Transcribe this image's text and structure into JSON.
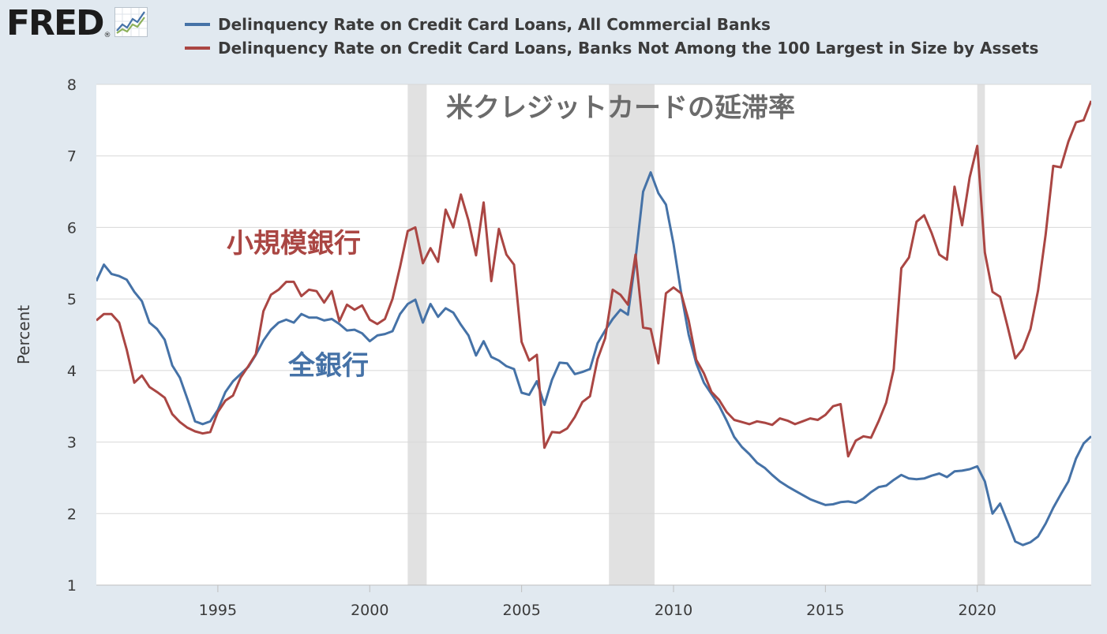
{
  "logo": {
    "text": "FRED",
    "registered": "®",
    "icon": "line-chart-icon"
  },
  "legend": [
    {
      "label": "Delinquency Rate on Credit Card Loans, All Commercial Banks",
      "color": "#4572a7"
    },
    {
      "label": "Delinquency Rate on Credit Card Loans, Banks Not Among the 100 Largest in Size by Assets",
      "color": "#aa4643"
    }
  ],
  "chart_data": {
    "type": "line",
    "title": "米クレジットカードの延滞率",
    "ylabel": "Percent",
    "xlabel": "",
    "xlim": [
      1991.0,
      2023.75
    ],
    "ylim": [
      1,
      8
    ],
    "xticks": [
      1995,
      2000,
      2005,
      2010,
      2015,
      2020
    ],
    "yticks": [
      1,
      2,
      3,
      4,
      5,
      6,
      7,
      8
    ],
    "grid": true,
    "recessions": [
      [
        2001.25,
        2001.875
      ],
      [
        2007.875,
        2009.375
      ],
      [
        2020.0,
        2020.25
      ]
    ],
    "annotations": [
      {
        "text": "小規模銀行",
        "color": "#aa4643",
        "series": 1
      },
      {
        "text": "全銀行",
        "color": "#4572a7",
        "series": 0
      }
    ],
    "series": [
      {
        "name": "Delinquency Rate on Credit Card Loans, All Commercial Banks",
        "color": "#4572a7",
        "points": [
          [
            1991.0,
            5.25
          ],
          [
            1991.25,
            5.48
          ],
          [
            1991.5,
            5.35
          ],
          [
            1991.75,
            5.32
          ],
          [
            1992.0,
            5.27
          ],
          [
            1992.25,
            5.1
          ],
          [
            1992.5,
            4.97
          ],
          [
            1992.75,
            4.67
          ],
          [
            1993.0,
            4.58
          ],
          [
            1993.25,
            4.43
          ],
          [
            1993.5,
            4.07
          ],
          [
            1993.75,
            3.9
          ],
          [
            1994.0,
            3.6
          ],
          [
            1994.25,
            3.29
          ],
          [
            1994.5,
            3.25
          ],
          [
            1994.75,
            3.29
          ],
          [
            1995.0,
            3.45
          ],
          [
            1995.25,
            3.7
          ],
          [
            1995.5,
            3.85
          ],
          [
            1995.75,
            3.95
          ],
          [
            1996.0,
            4.05
          ],
          [
            1996.25,
            4.22
          ],
          [
            1996.5,
            4.42
          ],
          [
            1996.75,
            4.57
          ],
          [
            1997.0,
            4.67
          ],
          [
            1997.25,
            4.71
          ],
          [
            1997.5,
            4.67
          ],
          [
            1997.75,
            4.79
          ],
          [
            1998.0,
            4.74
          ],
          [
            1998.25,
            4.74
          ],
          [
            1998.5,
            4.7
          ],
          [
            1998.75,
            4.72
          ],
          [
            1999.0,
            4.65
          ],
          [
            1999.25,
            4.56
          ],
          [
            1999.5,
            4.57
          ],
          [
            1999.75,
            4.52
          ],
          [
            2000.0,
            4.41
          ],
          [
            2000.25,
            4.49
          ],
          [
            2000.5,
            4.51
          ],
          [
            2000.75,
            4.55
          ],
          [
            2001.0,
            4.79
          ],
          [
            2001.25,
            4.93
          ],
          [
            2001.5,
            4.99
          ],
          [
            2001.75,
            4.67
          ],
          [
            2002.0,
            4.93
          ],
          [
            2002.25,
            4.75
          ],
          [
            2002.5,
            4.87
          ],
          [
            2002.75,
            4.81
          ],
          [
            2003.0,
            4.64
          ],
          [
            2003.25,
            4.49
          ],
          [
            2003.5,
            4.21
          ],
          [
            2003.75,
            4.41
          ],
          [
            2004.0,
            4.19
          ],
          [
            2004.25,
            4.14
          ],
          [
            2004.5,
            4.06
          ],
          [
            2004.75,
            4.02
          ],
          [
            2005.0,
            3.69
          ],
          [
            2005.25,
            3.66
          ],
          [
            2005.5,
            3.85
          ],
          [
            2005.75,
            3.52
          ],
          [
            2006.0,
            3.87
          ],
          [
            2006.25,
            4.11
          ],
          [
            2006.5,
            4.1
          ],
          [
            2006.75,
            3.95
          ],
          [
            2007.0,
            3.98
          ],
          [
            2007.25,
            4.02
          ],
          [
            2007.5,
            4.38
          ],
          [
            2007.75,
            4.56
          ],
          [
            2008.0,
            4.72
          ],
          [
            2008.25,
            4.85
          ],
          [
            2008.5,
            4.78
          ],
          [
            2008.75,
            5.56
          ],
          [
            2009.0,
            6.5
          ],
          [
            2009.25,
            6.77
          ],
          [
            2009.5,
            6.48
          ],
          [
            2009.75,
            6.32
          ],
          [
            2010.0,
            5.77
          ],
          [
            2010.25,
            5.09
          ],
          [
            2010.5,
            4.5
          ],
          [
            2010.75,
            4.1
          ],
          [
            2011.0,
            3.83
          ],
          [
            2011.25,
            3.67
          ],
          [
            2011.5,
            3.51
          ],
          [
            2011.75,
            3.3
          ],
          [
            2012.0,
            3.07
          ],
          [
            2012.25,
            2.93
          ],
          [
            2012.5,
            2.83
          ],
          [
            2012.75,
            2.71
          ],
          [
            2013.0,
            2.64
          ],
          [
            2013.25,
            2.54
          ],
          [
            2013.5,
            2.45
          ],
          [
            2013.75,
            2.38
          ],
          [
            2014.0,
            2.32
          ],
          [
            2014.25,
            2.26
          ],
          [
            2014.5,
            2.2
          ],
          [
            2014.75,
            2.16
          ],
          [
            2015.0,
            2.12
          ],
          [
            2015.25,
            2.13
          ],
          [
            2015.5,
            2.16
          ],
          [
            2015.75,
            2.17
          ],
          [
            2016.0,
            2.15
          ],
          [
            2016.25,
            2.21
          ],
          [
            2016.5,
            2.3
          ],
          [
            2016.75,
            2.37
          ],
          [
            2017.0,
            2.39
          ],
          [
            2017.25,
            2.47
          ],
          [
            2017.5,
            2.54
          ],
          [
            2017.75,
            2.49
          ],
          [
            2018.0,
            2.48
          ],
          [
            2018.25,
            2.49
          ],
          [
            2018.5,
            2.53
          ],
          [
            2018.75,
            2.56
          ],
          [
            2019.0,
            2.51
          ],
          [
            2019.25,
            2.59
          ],
          [
            2019.5,
            2.6
          ],
          [
            2019.75,
            2.62
          ],
          [
            2020.0,
            2.66
          ],
          [
            2020.25,
            2.45
          ],
          [
            2020.5,
            2.0
          ],
          [
            2020.75,
            2.14
          ],
          [
            2021.0,
            1.88
          ],
          [
            2021.25,
            1.61
          ],
          [
            2021.5,
            1.56
          ],
          [
            2021.75,
            1.6
          ],
          [
            2022.0,
            1.68
          ],
          [
            2022.25,
            1.86
          ],
          [
            2022.5,
            2.08
          ],
          [
            2022.75,
            2.27
          ],
          [
            2023.0,
            2.45
          ],
          [
            2023.25,
            2.77
          ],
          [
            2023.5,
            2.98
          ],
          [
            2023.75,
            3.08
          ]
        ]
      },
      {
        "name": "Delinquency Rate on Credit Card Loans, Banks Not Among the 100 Largest in Size by Assets",
        "color": "#aa4643",
        "points": [
          [
            1991.0,
            4.7
          ],
          [
            1991.25,
            4.79
          ],
          [
            1991.5,
            4.79
          ],
          [
            1991.75,
            4.67
          ],
          [
            1992.0,
            4.29
          ],
          [
            1992.25,
            3.83
          ],
          [
            1992.5,
            3.93
          ],
          [
            1992.75,
            3.77
          ],
          [
            1993.0,
            3.7
          ],
          [
            1993.25,
            3.62
          ],
          [
            1993.5,
            3.39
          ],
          [
            1993.75,
            3.28
          ],
          [
            1994.0,
            3.2
          ],
          [
            1994.25,
            3.15
          ],
          [
            1994.5,
            3.12
          ],
          [
            1994.75,
            3.14
          ],
          [
            1995.0,
            3.42
          ],
          [
            1995.25,
            3.58
          ],
          [
            1995.5,
            3.65
          ],
          [
            1995.75,
            3.9
          ],
          [
            1996.0,
            4.06
          ],
          [
            1996.25,
            4.23
          ],
          [
            1996.5,
            4.83
          ],
          [
            1996.75,
            5.06
          ],
          [
            1997.0,
            5.13
          ],
          [
            1997.25,
            5.24
          ],
          [
            1997.5,
            5.24
          ],
          [
            1997.75,
            5.04
          ],
          [
            1998.0,
            5.13
          ],
          [
            1998.25,
            5.11
          ],
          [
            1998.5,
            4.95
          ],
          [
            1998.75,
            5.11
          ],
          [
            1999.0,
            4.69
          ],
          [
            1999.25,
            4.92
          ],
          [
            1999.5,
            4.85
          ],
          [
            1999.75,
            4.91
          ],
          [
            2000.0,
            4.71
          ],
          [
            2000.25,
            4.65
          ],
          [
            2000.5,
            4.72
          ],
          [
            2000.75,
            5.0
          ],
          [
            2001.0,
            5.45
          ],
          [
            2001.25,
            5.95
          ],
          [
            2001.5,
            6.0
          ],
          [
            2001.75,
            5.5
          ],
          [
            2002.0,
            5.71
          ],
          [
            2002.25,
            5.52
          ],
          [
            2002.5,
            6.25
          ],
          [
            2002.75,
            6.0
          ],
          [
            2003.0,
            6.46
          ],
          [
            2003.25,
            6.1
          ],
          [
            2003.5,
            5.61
          ],
          [
            2003.75,
            6.35
          ],
          [
            2004.0,
            5.25
          ],
          [
            2004.25,
            5.98
          ],
          [
            2004.5,
            5.62
          ],
          [
            2004.75,
            5.48
          ],
          [
            2005.0,
            4.4
          ],
          [
            2005.25,
            4.14
          ],
          [
            2005.5,
            4.22
          ],
          [
            2005.75,
            2.92
          ],
          [
            2006.0,
            3.14
          ],
          [
            2006.25,
            3.13
          ],
          [
            2006.5,
            3.19
          ],
          [
            2006.75,
            3.35
          ],
          [
            2007.0,
            3.56
          ],
          [
            2007.25,
            3.64
          ],
          [
            2007.5,
            4.16
          ],
          [
            2007.75,
            4.45
          ],
          [
            2008.0,
            5.13
          ],
          [
            2008.25,
            5.06
          ],
          [
            2008.5,
            4.92
          ],
          [
            2008.75,
            5.62
          ],
          [
            2009.0,
            4.6
          ],
          [
            2009.25,
            4.58
          ],
          [
            2009.5,
            4.1
          ],
          [
            2009.75,
            5.08
          ],
          [
            2010.0,
            5.16
          ],
          [
            2010.25,
            5.08
          ],
          [
            2010.5,
            4.7
          ],
          [
            2010.75,
            4.15
          ],
          [
            2011.0,
            3.96
          ],
          [
            2011.25,
            3.7
          ],
          [
            2011.5,
            3.59
          ],
          [
            2011.75,
            3.42
          ],
          [
            2012.0,
            3.31
          ],
          [
            2012.25,
            3.28
          ],
          [
            2012.5,
            3.25
          ],
          [
            2012.75,
            3.29
          ],
          [
            2013.0,
            3.27
          ],
          [
            2013.25,
            3.24
          ],
          [
            2013.5,
            3.33
          ],
          [
            2013.75,
            3.3
          ],
          [
            2014.0,
            3.25
          ],
          [
            2014.25,
            3.29
          ],
          [
            2014.5,
            3.33
          ],
          [
            2014.75,
            3.31
          ],
          [
            2015.0,
            3.38
          ],
          [
            2015.25,
            3.5
          ],
          [
            2015.5,
            3.53
          ],
          [
            2015.75,
            2.8
          ],
          [
            2016.0,
            3.02
          ],
          [
            2016.25,
            3.08
          ],
          [
            2016.5,
            3.06
          ],
          [
            2016.75,
            3.29
          ],
          [
            2017.0,
            3.55
          ],
          [
            2017.25,
            4.02
          ],
          [
            2017.5,
            5.43
          ],
          [
            2017.75,
            5.58
          ],
          [
            2018.0,
            6.08
          ],
          [
            2018.25,
            6.17
          ],
          [
            2018.5,
            5.92
          ],
          [
            2018.75,
            5.62
          ],
          [
            2019.0,
            5.55
          ],
          [
            2019.25,
            6.57
          ],
          [
            2019.5,
            6.03
          ],
          [
            2019.75,
            6.7
          ],
          [
            2020.0,
            7.14
          ],
          [
            2020.25,
            5.65
          ],
          [
            2020.5,
            5.1
          ],
          [
            2020.75,
            5.03
          ],
          [
            2021.0,
            4.61
          ],
          [
            2021.25,
            4.17
          ],
          [
            2021.5,
            4.3
          ],
          [
            2021.75,
            4.58
          ],
          [
            2022.0,
            5.12
          ],
          [
            2022.25,
            5.9
          ],
          [
            2022.5,
            6.86
          ],
          [
            2022.75,
            6.84
          ],
          [
            2023.0,
            7.2
          ],
          [
            2023.25,
            7.47
          ],
          [
            2023.5,
            7.5
          ],
          [
            2023.75,
            7.77
          ]
        ]
      }
    ]
  }
}
